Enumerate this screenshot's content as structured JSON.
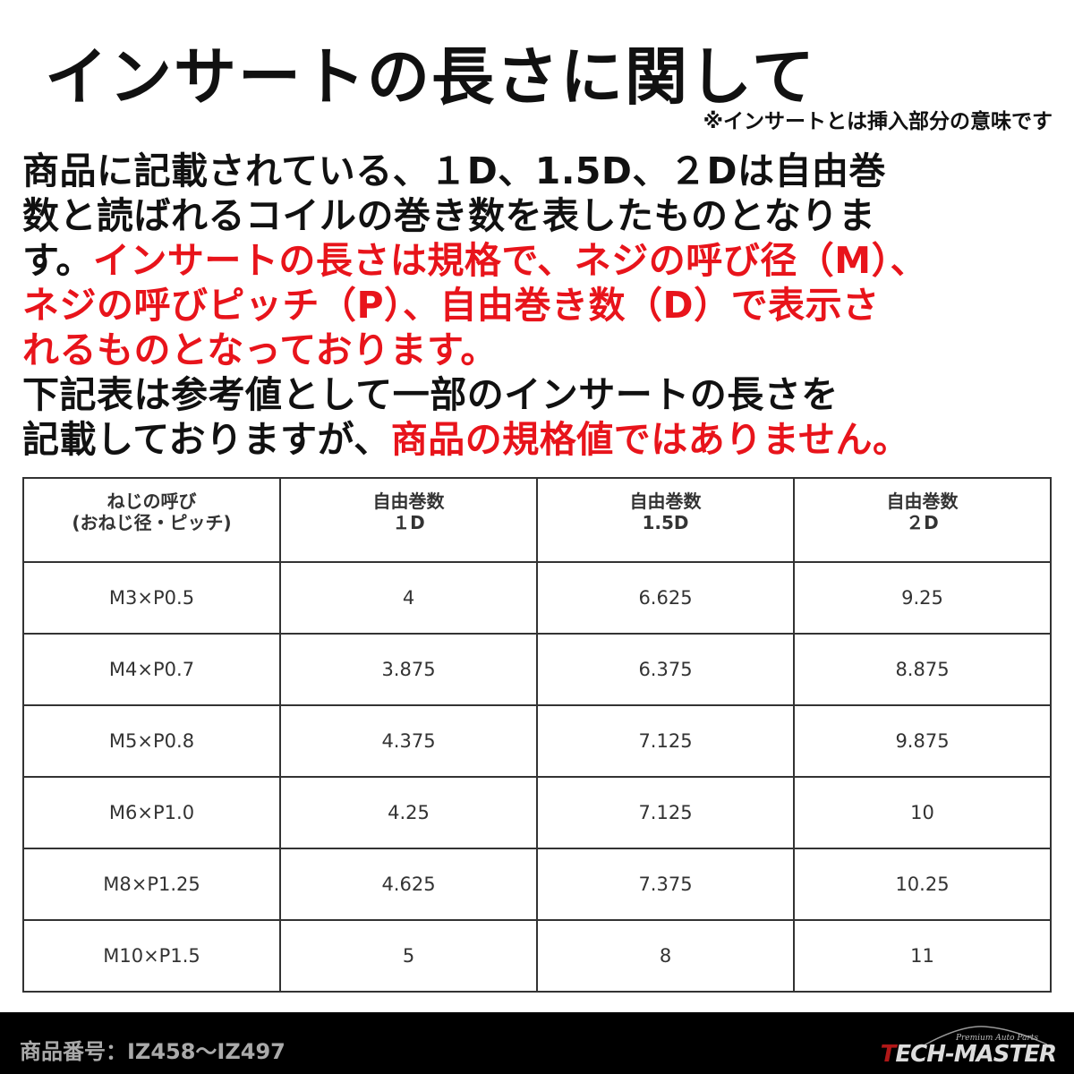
{
  "title": "インサートの長さに関して",
  "note": "※インサートとは挿入部分の意味です",
  "paragraph": {
    "l1": "商品に記載されている、１D、1.5D、２Dは自由巻",
    "l2": "数と読ばれるコイルの巻き数を表したものとなりま",
    "l3a": "す。",
    "l3b": "インサートの長さは規格で、ネジの呼び径（M）、",
    "l4": "ネジの呼びピッチ（P）、自由巻き数（D）で表示さ",
    "l5": "れるものとなっております。",
    "l6": "下記表は参考値として一部のインサートの長さを",
    "l7a": "記載しておりますが、",
    "l7b": "商品の規格値ではありません。"
  },
  "colors": {
    "red": "#e8141b",
    "text": "#111111",
    "footer": "#000000"
  },
  "table": {
    "headers": [
      [
        "ねじの呼び",
        "(おねじ径・ピッチ)"
      ],
      [
        "自由巻数",
        "１D"
      ],
      [
        "自由巻数",
        "1.5D"
      ],
      [
        "自由巻数",
        "２D"
      ]
    ],
    "rows": [
      [
        "M3×P0.5",
        "4",
        "6.625",
        "9.25"
      ],
      [
        "M4×P0.7",
        "3.875",
        "6.375",
        "8.875"
      ],
      [
        "M5×P0.8",
        "4.375",
        "7.125",
        "9.875"
      ],
      [
        "M6×P1.0",
        "4.25",
        "7.125",
        "10"
      ],
      [
        "M8×P1.25",
        "4.625",
        "7.375",
        "10.25"
      ],
      [
        "M10×P1.5",
        "5",
        "8",
        "11"
      ]
    ]
  },
  "footer": {
    "product_code": "商品番号：IZ458～IZ497",
    "logo_main": "TECH-MASTER",
    "logo_sub": "Premium Auto Parts"
  }
}
